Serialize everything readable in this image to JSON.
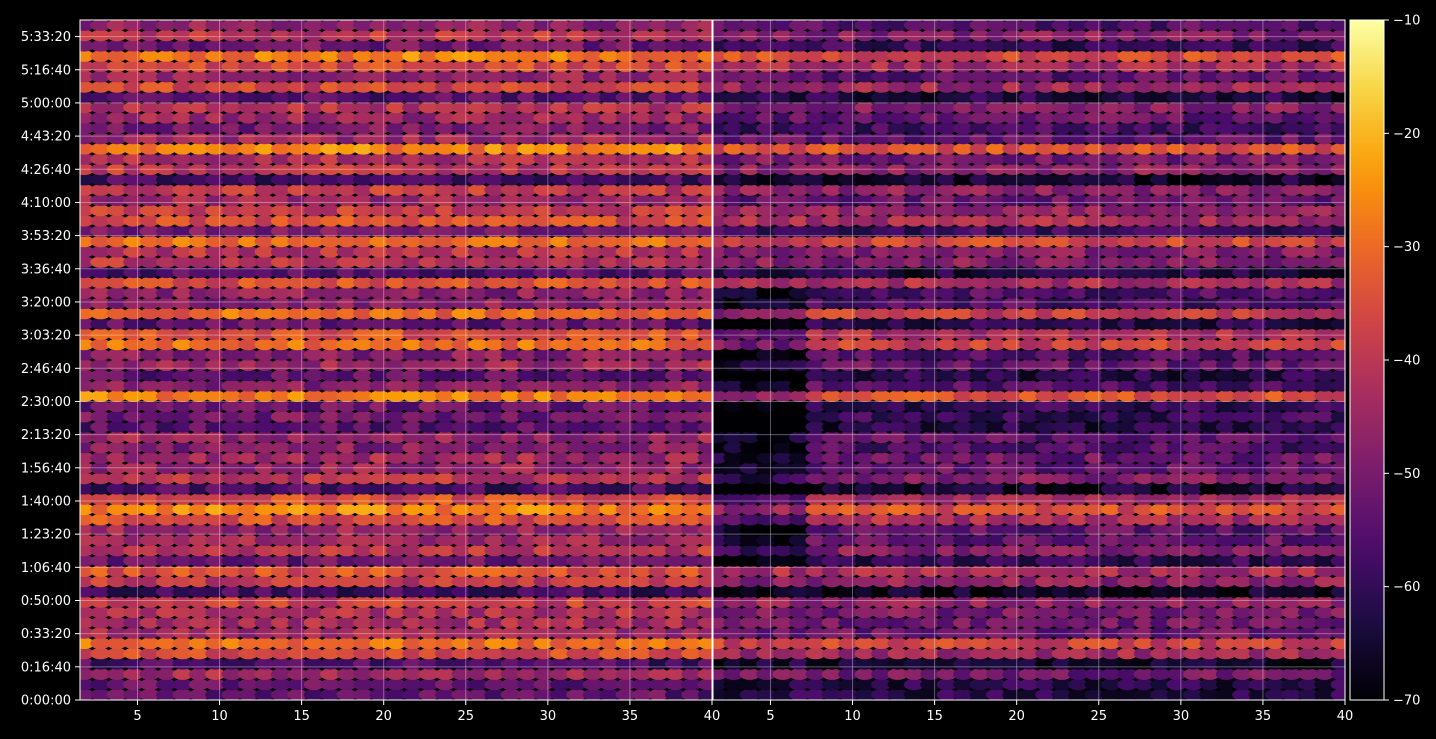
{
  "chart_data": {
    "type": "heatmap",
    "title": "",
    "xlabel": "",
    "ylabel": "",
    "background": "#000000",
    "colormap": "inferno",
    "colormap_stops": [
      "#000004",
      "#1b0c41",
      "#4a0c6b",
      "#781c6d",
      "#a52c60",
      "#cf4446",
      "#ed6925",
      "#fb9b06",
      "#f7d13d",
      "#fcffa4"
    ],
    "grid": true,
    "panels": [
      {
        "id": "left",
        "x_range": [
          1.5,
          40
        ],
        "x_ticks": [
          5,
          10,
          15,
          20,
          25,
          30,
          35,
          40
        ],
        "x_tick_labels": [
          "5",
          "10",
          "15",
          "20",
          "25",
          "30",
          "35",
          "40"
        ],
        "show_y_labels": true
      },
      {
        "id": "right",
        "x_range": [
          1.5,
          40
        ],
        "x_ticks": [
          5,
          10,
          15,
          20,
          25,
          30,
          35,
          40
        ],
        "x_tick_labels": [
          "5",
          "10",
          "15",
          "20",
          "25",
          "30",
          "35",
          "40"
        ],
        "show_y_labels": false
      }
    ],
    "y_range_seconds": [
      0,
      20500
    ],
    "y_ticks_seconds": [
      0,
      1000,
      2000,
      3000,
      4000,
      5000,
      6000,
      7000,
      8000,
      9000,
      10000,
      11000,
      12000,
      13000,
      14000,
      15000,
      16000,
      17000,
      18000,
      19000,
      20000
    ],
    "y_tick_labels": [
      "0:00:00",
      "0:16:40",
      "0:33:20",
      "0:50:00",
      "1:06:40",
      "1:23:20",
      "1:40:00",
      "1:56:40",
      "2:13:20",
      "2:30:00",
      "2:46:40",
      "3:03:20",
      "3:20:00",
      "3:36:40",
      "3:53:20",
      "4:10:00",
      "4:26:40",
      "4:43:20",
      "5:00:00",
      "5:16:40",
      "5:33:20"
    ],
    "colorbar": {
      "range": [
        -70,
        -10
      ],
      "ticks": [
        -10,
        -20,
        -30,
        -40,
        -50,
        -60,
        -70
      ],
      "tick_labels": [
        "−10",
        "−20",
        "−30",
        "−40",
        "−50",
        "−60",
        "−70"
      ]
    },
    "value_range": [
      -70,
      -10
    ]
  }
}
